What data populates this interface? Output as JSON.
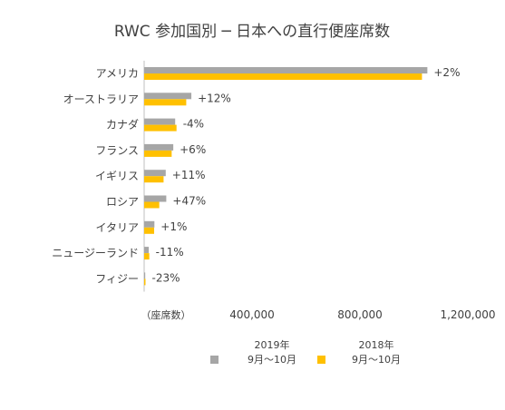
{
  "chart_data": {
    "type": "bar",
    "orientation": "horizontal",
    "title": "RWC 参加国別 ─ 日本への直行便座席数",
    "unit_label": "（座席数）",
    "categories": [
      "アメリカ",
      "オーストラリア",
      "カナダ",
      "フランス",
      "イギリス",
      "ロシア",
      "イタリア",
      "ニュージーランド",
      "フィジー"
    ],
    "series": [
      {
        "name": "2019年\n9月〜10月",
        "color": "#a6a6a6",
        "values": [
          1050000,
          175000,
          115000,
          108000,
          80000,
          82000,
          38000,
          17000,
          4000
        ]
      },
      {
        "name": "2018年\n9月〜10月",
        "color": "#ffc000",
        "values": [
          1030000,
          156000,
          120000,
          102000,
          72000,
          56000,
          37000,
          19000,
          5000
        ]
      }
    ],
    "change_labels": [
      "+2%",
      "+12%",
      "-4%",
      "+6%",
      "+11%",
      "+47%",
      "+1%",
      "-11%",
      "-23%"
    ],
    "x_ticks": [
      400000,
      800000,
      1200000
    ],
    "x_tick_labels": [
      "400,000",
      "800,000",
      "1,200,000"
    ],
    "xlim": [
      0,
      1200000
    ],
    "legend_position": "bottom",
    "grid": false
  }
}
